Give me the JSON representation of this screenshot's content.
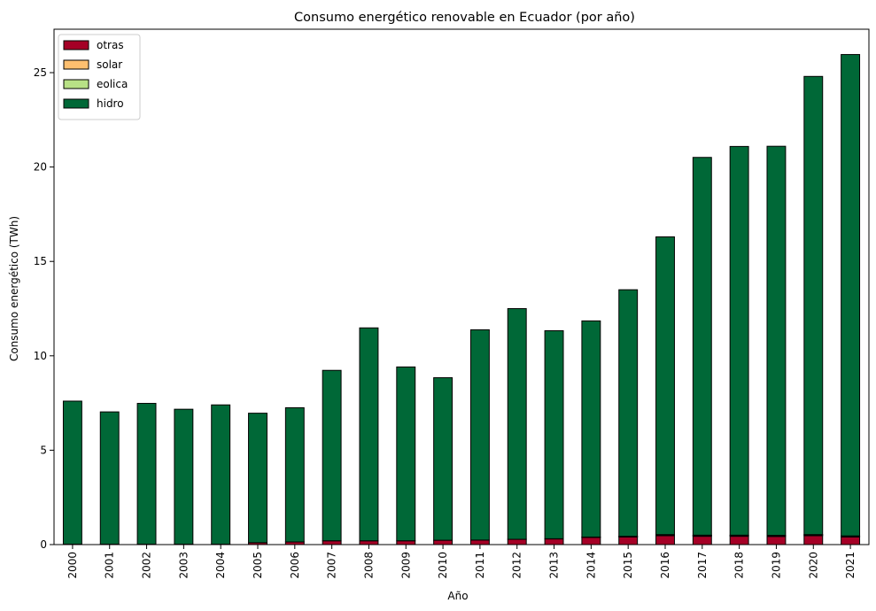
{
  "chart_data": {
    "type": "bar",
    "stacked": true,
    "title": "Consumo energético renovable en Ecuador (por año)",
    "xlabel": "Año",
    "ylabel": "Consumo energético (TWh)",
    "ylim": [
      0,
      27.3
    ],
    "yticks": [
      0,
      5,
      10,
      15,
      20,
      25
    ],
    "grid": false,
    "legend_position": "upper-left",
    "categories": [
      "2000",
      "2001",
      "2002",
      "2003",
      "2004",
      "2005",
      "2006",
      "2007",
      "2008",
      "2009",
      "2010",
      "2011",
      "2012",
      "2013",
      "2014",
      "2015",
      "2016",
      "2017",
      "2018",
      "2019",
      "2020",
      "2021"
    ],
    "series": [
      {
        "name": "otras",
        "color": "#a50026",
        "values": [
          0.02,
          0.02,
          0.02,
          0.02,
          0.02,
          0.1,
          0.14,
          0.2,
          0.2,
          0.2,
          0.23,
          0.24,
          0.28,
          0.3,
          0.38,
          0.4,
          0.47,
          0.44,
          0.44,
          0.43,
          0.47,
          0.4
        ]
      },
      {
        "name": "solar",
        "color": "#fdbf6f",
        "values": [
          0,
          0,
          0,
          0,
          0,
          0,
          0,
          0,
          0,
          0,
          0,
          0,
          0,
          0,
          0.01,
          0.03,
          0.04,
          0.04,
          0.04,
          0.04,
          0.04,
          0.04
        ]
      },
      {
        "name": "eolica",
        "color": "#b8e186",
        "values": [
          0,
          0,
          0,
          0,
          0,
          0,
          0,
          0,
          0,
          0,
          0,
          0,
          0,
          0.01,
          0.01,
          0.01,
          0.02,
          0.02,
          0.02,
          0.02,
          0.02,
          0.02
        ]
      },
      {
        "name": "hidro",
        "color": "#006837",
        "values": [
          7.58,
          7.01,
          7.46,
          7.15,
          7.38,
          6.86,
          7.11,
          9.03,
          11.28,
          9.21,
          8.61,
          11.14,
          12.22,
          11.02,
          11.45,
          13.06,
          15.77,
          20.01,
          20.59,
          20.61,
          24.27,
          25.5
        ]
      }
    ]
  }
}
